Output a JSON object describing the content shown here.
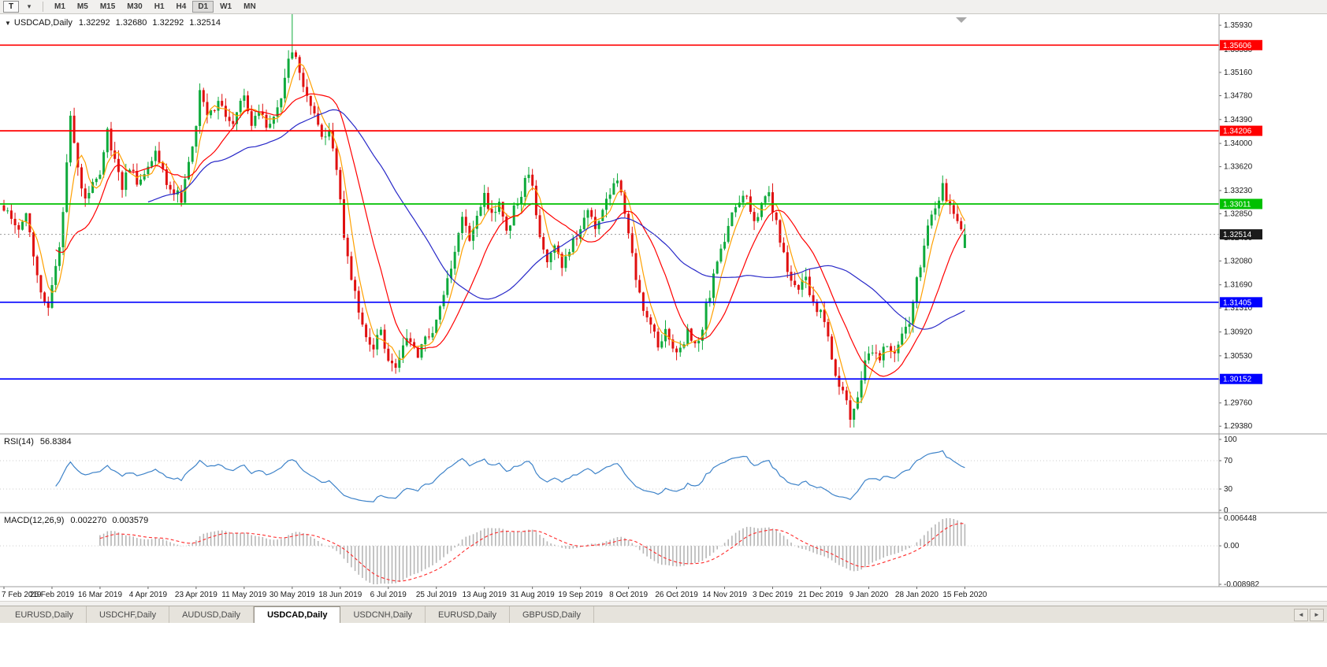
{
  "toolbar": {
    "template_button": "T",
    "style_caret": "▾",
    "timeframes": [
      "M1",
      "M5",
      "M15",
      "M30",
      "H1",
      "H4",
      "D1",
      "W1",
      "MN"
    ],
    "active_timeframe": "D1"
  },
  "header": {
    "collapse_icon": "▼",
    "symbol": "USDCAD,Daily",
    "ohlc": [
      "1.32292",
      "1.32680",
      "1.32292",
      "1.32514"
    ]
  },
  "main_chart": {
    "y_ticks": [
      "1.35930",
      "1.35530",
      "1.35160",
      "1.34780",
      "1.34390",
      "1.34000",
      "1.33620",
      "1.33230",
      "1.32850",
      "1.32460",
      "1.32080",
      "1.31690",
      "1.31310",
      "1.30920",
      "1.30530",
      "1.30140",
      "1.29760",
      "1.29380"
    ],
    "hlines": [
      {
        "value": 1.35606,
        "label": "1.35606",
        "color": "#ff0000"
      },
      {
        "value": 1.34206,
        "label": "1.34206",
        "color": "#ff0000"
      },
      {
        "value": 1.33011,
        "label": "1.33011",
        "color": "#00c000"
      },
      {
        "value": 1.31405,
        "label": "1.31405",
        "color": "#0000ff"
      },
      {
        "value": 1.30152,
        "label": "1.30152",
        "color": "#0000ff"
      }
    ],
    "current_price": {
      "value": 1.32514,
      "label": "1.32514"
    }
  },
  "rsi": {
    "name": "RSI(14)",
    "value": "56.8384",
    "ticks": [
      "100",
      "70",
      "30",
      "0"
    ]
  },
  "macd": {
    "name": "MACD(12,26,9)",
    "values": [
      "0.002270",
      "0.003579"
    ],
    "ticks": [
      "0.006448",
      "0.00",
      "-0.008982"
    ]
  },
  "x_axis": {
    "labels": [
      "7 Feb 2019",
      "26 Feb 2019",
      "16 Mar 2019",
      "4 Apr 2019",
      "23 Apr 2019",
      "11 May 2019",
      "30 May 2019",
      "18 Jun 2019",
      "6 Jul 2019",
      "25 Jul 2019",
      "13 Aug 2019",
      "31 Aug 2019",
      "19 Sep 2019",
      "8 Oct 2019",
      "26 Oct 2019",
      "14 Nov 2019",
      "3 Dec 2019",
      "21 Dec 2019",
      "9 Jan 2020",
      "28 Jan 2020",
      "15 Feb 2020"
    ],
    "label_interval": 13
  },
  "tabs": {
    "items": [
      "EURUSD,Daily",
      "USDCHF,Daily",
      "AUDUSD,Daily",
      "USDCAD,Daily",
      "USDCNH,Daily",
      "EURUSD,Daily",
      "GBPUSD,Daily"
    ],
    "active_index": 3,
    "scroll_left": "◄",
    "scroll_right": "►"
  },
  "colors": {
    "candle_up": "#0faa3c",
    "candle_down": "#e01010",
    "rsi_line": "#3e83c9",
    "macd_histogram": "#b6b6b6",
    "macd_signal": "#ff2a2a",
    "price_badge_bg": "#1b1b1b",
    "axis_text": "#1a1a1a"
  },
  "chart_data": {
    "type": "candlestick",
    "symbol": "USDCAD",
    "timeframe": "Daily",
    "title": "USDCAD,Daily",
    "y_range": [
      1.2928,
      1.3606
    ],
    "num_candles": 261,
    "last_ohlc": {
      "open": 1.32292,
      "high": 1.3268,
      "low": 1.32292,
      "close": 1.32514
    },
    "extremes": {
      "high": {
        "day": 78,
        "price": 1.3655
      },
      "low": {
        "day": 229,
        "price": 1.2952
      }
    },
    "price_path": [
      [
        0,
        1.33
      ],
      [
        2,
        1.3285
      ],
      [
        4,
        1.3265
      ],
      [
        6,
        1.329
      ],
      [
        8,
        1.3215
      ],
      [
        10,
        1.316
      ],
      [
        12,
        1.314
      ],
      [
        14,
        1.319
      ],
      [
        16,
        1.329
      ],
      [
        18,
        1.3445
      ],
      [
        20,
        1.336
      ],
      [
        22,
        1.331
      ],
      [
        24,
        1.333
      ],
      [
        26,
        1.3345
      ],
      [
        28,
        1.3425
      ],
      [
        30,
        1.337
      ],
      [
        32,
        1.333
      ],
      [
        34,
        1.3365
      ],
      [
        36,
        1.334
      ],
      [
        39,
        1.3355
      ],
      [
        41,
        1.3395
      ],
      [
        43,
        1.335
      ],
      [
        45,
        1.3325
      ],
      [
        48,
        1.331
      ],
      [
        50,
        1.337
      ],
      [
        52,
        1.342
      ],
      [
        53,
        1.3485
      ],
      [
        55,
        1.345
      ],
      [
        58,
        1.3465
      ],
      [
        61,
        1.343
      ],
      [
        63,
        1.345
      ],
      [
        65,
        1.347
      ],
      [
        67,
        1.3435
      ],
      [
        69,
        1.346
      ],
      [
        71,
        1.3425
      ],
      [
        73,
        1.345
      ],
      [
        75,
        1.3475
      ],
      [
        77,
        1.353
      ],
      [
        78,
        1.3555
      ],
      [
        80,
        1.351
      ],
      [
        82,
        1.3475
      ],
      [
        84,
        1.344
      ],
      [
        86,
        1.3415
      ],
      [
        88,
        1.342
      ],
      [
        90,
        1.335
      ],
      [
        92,
        1.325
      ],
      [
        94,
        1.3175
      ],
      [
        96,
        1.313
      ],
      [
        98,
        1.3085
      ],
      [
        100,
        1.307
      ],
      [
        102,
        1.3095
      ],
      [
        104,
        1.305
      ],
      [
        106,
        1.3032
      ],
      [
        108,
        1.3065
      ],
      [
        110,
        1.3085
      ],
      [
        112,
        1.305
      ],
      [
        114,
        1.3075
      ],
      [
        116,
        1.31
      ],
      [
        118,
        1.3135
      ],
      [
        120,
        1.318
      ],
      [
        122,
        1.323
      ],
      [
        124,
        1.3275
      ],
      [
        126,
        1.325
      ],
      [
        128,
        1.3285
      ],
      [
        130,
        1.331
      ],
      [
        132,
        1.328
      ],
      [
        134,
        1.3305
      ],
      [
        136,
        1.326
      ],
      [
        138,
        1.329
      ],
      [
        140,
        1.332
      ],
      [
        142,
        1.3355
      ],
      [
        144,
        1.329
      ],
      [
        145,
        1.3245
      ],
      [
        147,
        1.3205
      ],
      [
        149,
        1.3235
      ],
      [
        151,
        1.3195
      ],
      [
        153,
        1.3225
      ],
      [
        156,
        1.326
      ],
      [
        158,
        1.329
      ],
      [
        160,
        1.3255
      ],
      [
        162,
        1.3285
      ],
      [
        164,
        1.332
      ],
      [
        166,
        1.3335
      ],
      [
        168,
        1.3295
      ],
      [
        169,
        1.3255
      ],
      [
        171,
        1.3185
      ],
      [
        173,
        1.3135
      ],
      [
        175,
        1.31
      ],
      [
        177,
        1.3075
      ],
      [
        179,
        1.3095
      ],
      [
        181,
        1.307
      ],
      [
        183,
        1.306
      ],
      [
        185,
        1.309
      ],
      [
        187,
        1.3065
      ],
      [
        189,
        1.3105
      ],
      [
        191,
        1.3155
      ],
      [
        193,
        1.32
      ],
      [
        195,
        1.324
      ],
      [
        197,
        1.328
      ],
      [
        199,
        1.33
      ],
      [
        201,
        1.331
      ],
      [
        203,
        1.327
      ],
      [
        205,
        1.3295
      ],
      [
        207,
        1.3315
      ],
      [
        209,
        1.3275
      ],
      [
        211,
        1.3215
      ],
      [
        213,
        1.3175
      ],
      [
        215,
        1.3165
      ],
      [
        217,
        1.3175
      ],
      [
        219,
        1.314
      ],
      [
        221,
        1.3125
      ],
      [
        223,
        1.308
      ],
      [
        225,
        1.303
      ],
      [
        227,
        1.299
      ],
      [
        229,
        1.2955
      ],
      [
        231,
        1.2985
      ],
      [
        233,
        1.304
      ],
      [
        235,
        1.306
      ],
      [
        237,
        1.305
      ],
      [
        239,
        1.307
      ],
      [
        241,
        1.3055
      ],
      [
        243,
        1.3085
      ],
      [
        245,
        1.3105
      ],
      [
        247,
        1.318
      ],
      [
        249,
        1.3235
      ],
      [
        251,
        1.3285
      ],
      [
        253,
        1.3315
      ],
      [
        254,
        1.333
      ],
      [
        256,
        1.33
      ],
      [
        258,
        1.327
      ],
      [
        260,
        1.3251
      ]
    ],
    "moving_averages": [
      {
        "period": 5,
        "color": "#ffa000"
      },
      {
        "period": 15,
        "color": "#ff0000"
      },
      {
        "period": 40,
        "color": "#2828c8"
      }
    ],
    "indicators": {
      "rsi": {
        "period": 14,
        "value": 56.8384,
        "range": [
          0,
          100
        ],
        "levels": [
          70,
          30
        ]
      },
      "macd": {
        "fast": 12,
        "slow": 26,
        "signal": 9,
        "main_value": 0.00227,
        "signal_value": 0.003579,
        "axis": [
          0.006448,
          0.0,
          -0.008982
        ]
      }
    }
  }
}
